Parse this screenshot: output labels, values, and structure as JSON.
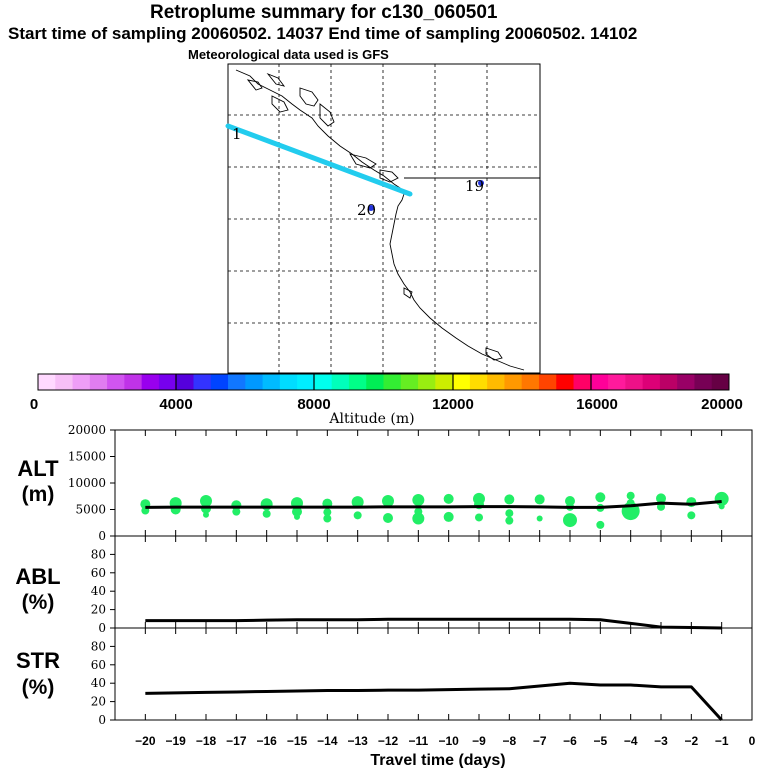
{
  "header": {
    "title": "Retroplume summary for c130_060501",
    "subtitle": "Start time of sampling 20060502. 14037     End time of sampling 20060502. 14102",
    "met": "Meteorological data used is GFS"
  },
  "colorbar": {
    "tick_labels": [
      "0",
      "4000",
      "8000",
      "12000",
      "16000",
      "20000"
    ],
    "label": "Altitude (m)",
    "colors": [
      "#ffd9ff",
      "#f7bff7",
      "#ee9ef7",
      "#e07df0",
      "#d155f0",
      "#c033e8",
      "#9900ee",
      "#7700ee",
      "#5500dd",
      "#3333ff",
      "#0044ff",
      "#1177ff",
      "#0099ff",
      "#00bbff",
      "#00ddff",
      "#00eeff",
      "#00ffee",
      "#00ffbb",
      "#00ff88",
      "#00ee55",
      "#33ee33",
      "#66ee22",
      "#99ee11",
      "#ccee00",
      "#ffff00",
      "#ffdd00",
      "#ffbb00",
      "#ff9900",
      "#ff7700",
      "#ff4400",
      "#ff0000",
      "#ff0066",
      "#ff0099",
      "#ff1a9c",
      "#ee1188",
      "#dd0077",
      "#bb0066",
      "#990066",
      "#770055",
      "#660044"
    ]
  },
  "map": {
    "labels": [
      {
        "text": "1",
        "color": "#000000"
      },
      {
        "text": "19",
        "color": "#000000"
      },
      {
        "text": "20",
        "color": "#000000"
      }
    ],
    "track_color": "#22ccee"
  },
  "chart_data": [
    {
      "type": "line",
      "name": "ALT",
      "ylabel": "ALT\n(m)",
      "ylim": [
        0,
        20000
      ],
      "yticks": [
        0,
        5000,
        10000,
        15000,
        20000
      ],
      "x": [
        -20,
        -19,
        -18,
        -17,
        -16,
        -15,
        -14,
        -13,
        -12,
        -11,
        -10,
        -9,
        -8,
        -7,
        -6,
        -5,
        -4,
        -3,
        -2,
        -1
      ],
      "values": [
        5400,
        5450,
        5450,
        5450,
        5450,
        5450,
        5450,
        5450,
        5500,
        5500,
        5500,
        5550,
        5550,
        5500,
        5400,
        5400,
        5700,
        6200,
        6000,
        6500
      ],
      "scatter_color": "#22ee66",
      "scatter_points": [
        {
          "x": -20,
          "y": 6000,
          "s": 5
        },
        {
          "x": -20,
          "y": 4800,
          "s": 4
        },
        {
          "x": -19,
          "y": 6200,
          "s": 6
        },
        {
          "x": -19,
          "y": 5000,
          "s": 5
        },
        {
          "x": -18,
          "y": 6600,
          "s": 6
        },
        {
          "x": -18,
          "y": 5200,
          "s": 5
        },
        {
          "x": -18,
          "y": 4000,
          "s": 3
        },
        {
          "x": -17,
          "y": 5800,
          "s": 5
        },
        {
          "x": -17,
          "y": 4600,
          "s": 4
        },
        {
          "x": -16,
          "y": 6000,
          "s": 6
        },
        {
          "x": -16,
          "y": 4200,
          "s": 4
        },
        {
          "x": -15,
          "y": 6200,
          "s": 6
        },
        {
          "x": -15,
          "y": 4600,
          "s": 5
        },
        {
          "x": -15,
          "y": 3600,
          "s": 3
        },
        {
          "x": -14,
          "y": 6100,
          "s": 5
        },
        {
          "x": -14,
          "y": 4500,
          "s": 4
        },
        {
          "x": -14,
          "y": 3300,
          "s": 4
        },
        {
          "x": -13,
          "y": 6400,
          "s": 6
        },
        {
          "x": -13,
          "y": 3900,
          "s": 4
        },
        {
          "x": -12,
          "y": 6600,
          "s": 6
        },
        {
          "x": -12,
          "y": 3400,
          "s": 5
        },
        {
          "x": -11,
          "y": 6800,
          "s": 6
        },
        {
          "x": -11,
          "y": 4600,
          "s": 4
        },
        {
          "x": -11,
          "y": 3300,
          "s": 6
        },
        {
          "x": -10,
          "y": 7000,
          "s": 5
        },
        {
          "x": -10,
          "y": 3600,
          "s": 5
        },
        {
          "x": -9,
          "y": 7000,
          "s": 6
        },
        {
          "x": -9,
          "y": 6000,
          "s": 5
        },
        {
          "x": -9,
          "y": 3500,
          "s": 4
        },
        {
          "x": -8,
          "y": 6900,
          "s": 5
        },
        {
          "x": -8,
          "y": 4300,
          "s": 4
        },
        {
          "x": -8,
          "y": 2900,
          "s": 4
        },
        {
          "x": -7,
          "y": 6900,
          "s": 5
        },
        {
          "x": -7,
          "y": 3300,
          "s": 3
        },
        {
          "x": -6,
          "y": 6600,
          "s": 5
        },
        {
          "x": -6,
          "y": 3000,
          "s": 7
        },
        {
          "x": -6,
          "y": 5500,
          "s": 4
        },
        {
          "x": -5,
          "y": 7300,
          "s": 5
        },
        {
          "x": -5,
          "y": 5300,
          "s": 4
        },
        {
          "x": -5,
          "y": 2100,
          "s": 4
        },
        {
          "x": -4,
          "y": 7600,
          "s": 4
        },
        {
          "x": -4,
          "y": 6200,
          "s": 4
        },
        {
          "x": -4,
          "y": 4700,
          "s": 9
        },
        {
          "x": -3,
          "y": 7100,
          "s": 5
        },
        {
          "x": -3,
          "y": 5500,
          "s": 4
        },
        {
          "x": -2,
          "y": 6400,
          "s": 5
        },
        {
          "x": -2,
          "y": 3900,
          "s": 4
        },
        {
          "x": -1,
          "y": 7000,
          "s": 7
        },
        {
          "x": -1,
          "y": 5600,
          "s": 3
        }
      ]
    },
    {
      "type": "line",
      "name": "ABL",
      "ylabel": "ABL\n(%)",
      "ylim": [
        0,
        100
      ],
      "yticks": [
        0,
        20,
        40,
        60,
        80
      ],
      "x": [
        -20,
        -19,
        -18,
        -17,
        -16,
        -15,
        -14,
        -13,
        -12,
        -11,
        -10,
        -9,
        -8,
        -7,
        -6,
        -5,
        -4,
        -3,
        -2,
        -1
      ],
      "values": [
        8,
        8,
        8,
        8,
        8.5,
        9,
        9,
        9,
        9.5,
        9.5,
        9.5,
        9.5,
        9.5,
        9.5,
        9.5,
        9,
        5,
        1,
        0.5,
        0
      ]
    },
    {
      "type": "line",
      "name": "STR",
      "ylabel": "STR\n(%)",
      "ylim": [
        0,
        100
      ],
      "yticks": [
        0,
        20,
        40,
        60,
        80
      ],
      "x": [
        -20,
        -19,
        -18,
        -17,
        -16,
        -15,
        -14,
        -13,
        -12,
        -11,
        -10,
        -9,
        -8,
        -7,
        -6,
        -5,
        -4,
        -3,
        -2,
        -1
      ],
      "values": [
        29,
        29.5,
        30,
        30.5,
        31,
        31.5,
        32,
        32,
        32.5,
        32.5,
        33,
        33.5,
        34,
        37,
        40,
        38,
        38,
        36,
        36,
        0
      ]
    }
  ],
  "xaxis": {
    "tick_labels": [
      "−20",
      "−19",
      "−18",
      "−17",
      "−16",
      "−15",
      "−14",
      "−13",
      "−12",
      "−11",
      "−10",
      "−9",
      "−8",
      "−7",
      "−6",
      "−5",
      "−4",
      "−3",
      "−2",
      "−1",
      "0"
    ],
    "label": "Travel time (days)"
  }
}
